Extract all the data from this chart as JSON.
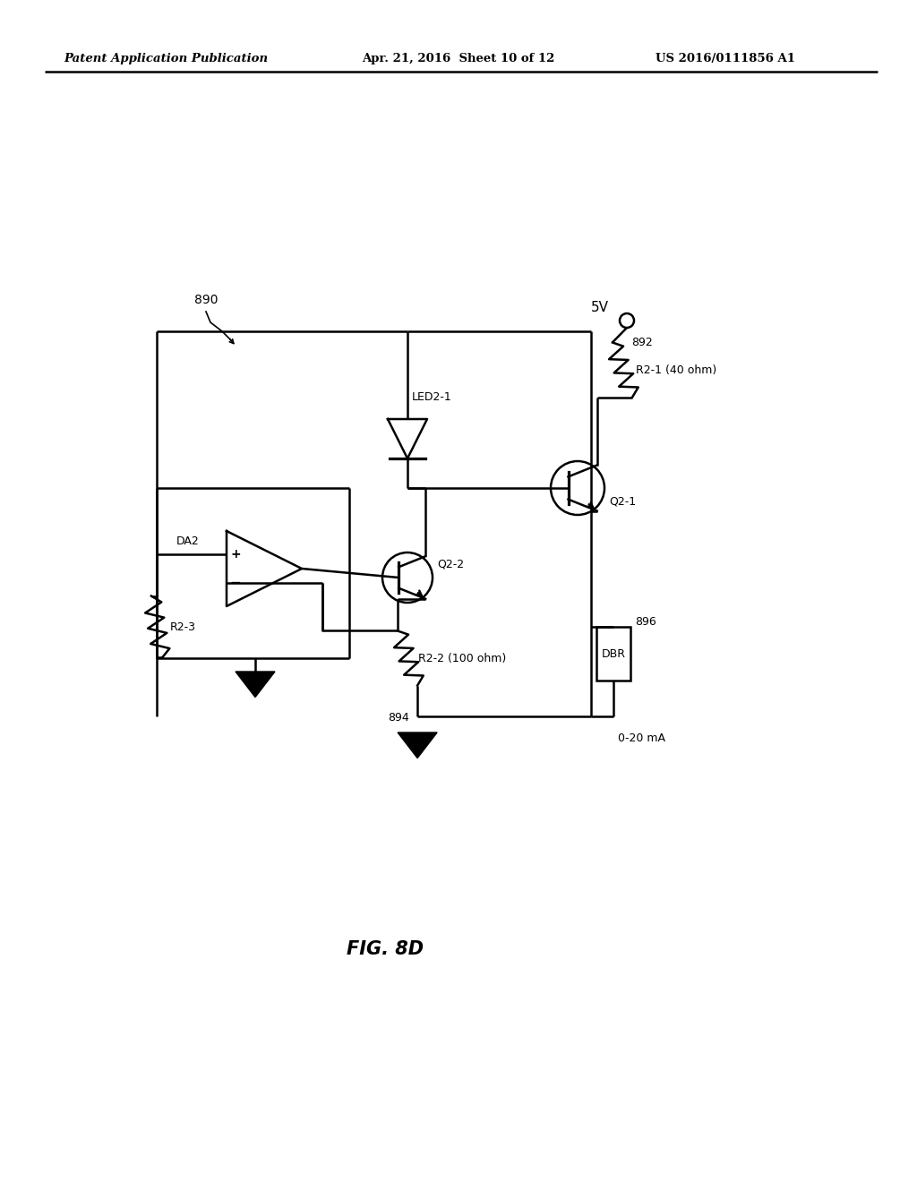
{
  "title": "FIG. 8D",
  "header_left": "Patent Application Publication",
  "header_center": "Apr. 21, 2016  Sheet 10 of 12",
  "header_right": "US 2016/0111856 A1",
  "label_890": "890",
  "label_892": "892",
  "label_893": "R2-1 (40 ohm)",
  "label_894": "894",
  "label_895": "R2-2 (100 ohm)",
  "label_896": "896",
  "label_DA2": "DA2",
  "label_R23": "R2-3",
  "label_LED": "LED2-1",
  "label_Q21": "Q2-1",
  "label_Q22": "Q2-2",
  "label_DBR": "DBR",
  "label_5V": "5V",
  "label_020mA": "0-20 mA",
  "bg_color": "#ffffff",
  "line_color": "#000000",
  "text_color": "#000000",
  "line_width": 1.8
}
